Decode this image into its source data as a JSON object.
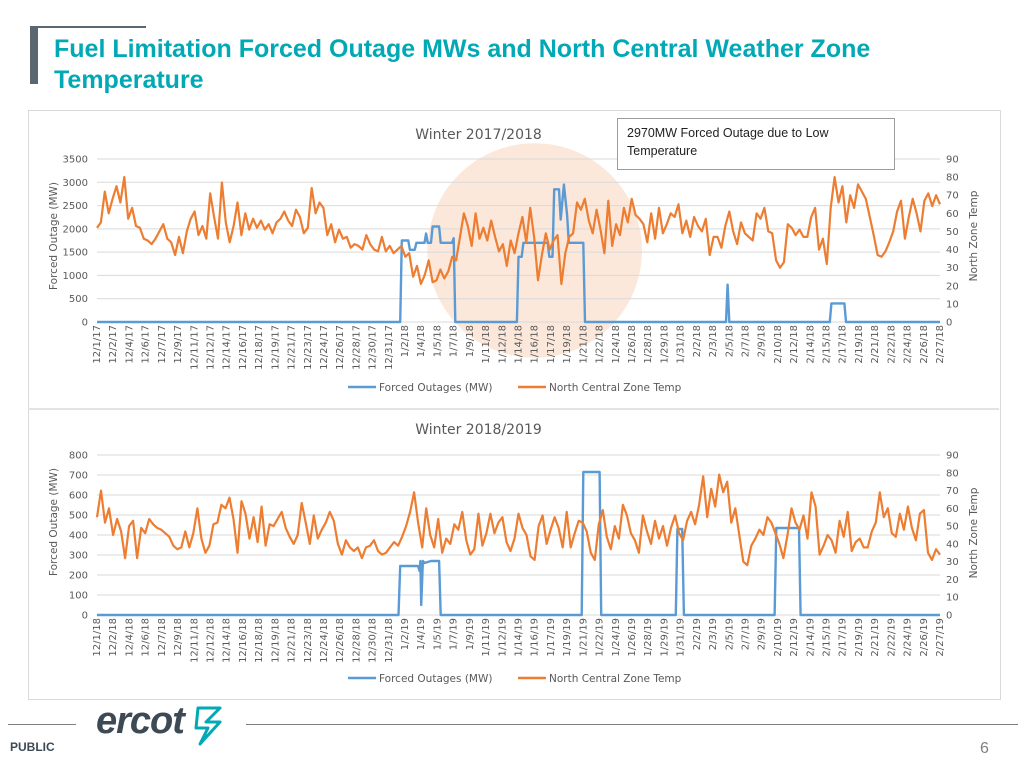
{
  "slide": {
    "title": "Fuel Limitation Forced Outage MWs and North Central Weather Zone Temperature",
    "footer_label": "PUBLIC",
    "page_number": "6",
    "logo_text": "ercot"
  },
  "colors": {
    "outage": "#5b9bd5",
    "temp": "#ed7d31",
    "title": "#00a9b5",
    "highlight": "#f8cbad"
  },
  "annotation": {
    "text": "2970MW Forced Outage due to Low Temperature"
  },
  "chart_data": [
    {
      "type": "line",
      "title": "Winter 2017/2018",
      "ylabel": "Forced Outage (MW)",
      "y2label": "North Zone Temp",
      "ylim": [
        0,
        3500
      ],
      "y2lim": [
        0,
        90
      ],
      "yticks": [
        0,
        500,
        1000,
        1500,
        2000,
        2500,
        3000,
        3500
      ],
      "y2ticks": [
        0,
        10,
        20,
        30,
        40,
        50,
        60,
        70,
        80,
        90
      ],
      "xticks": [
        "12/1/17",
        "12/2/17",
        "12/4/17",
        "12/6/17",
        "12/7/17",
        "12/9/17",
        "12/11/17",
        "12/12/17",
        "12/14/17",
        "12/16/17",
        "12/18/17",
        "12/19/17",
        "12/21/17",
        "12/23/17",
        "12/24/17",
        "12/26/17",
        "12/28/17",
        "12/30/17",
        "12/31/17",
        "1/2/18",
        "1/4/18",
        "1/5/18",
        "1/7/18",
        "1/9/18",
        "1/11/18",
        "1/12/18",
        "1/14/18",
        "1/16/18",
        "1/17/18",
        "1/19/18",
        "1/21/18",
        "1/22/18",
        "1/24/18",
        "1/26/18",
        "1/28/18",
        "1/29/18",
        "1/31/18",
        "2/2/18",
        "2/3/18",
        "2/5/18",
        "2/7/18",
        "2/9/18",
        "2/10/18",
        "2/12/18",
        "2/14/18",
        "2/15/18",
        "2/17/18",
        "2/19/18",
        "2/21/18",
        "2/22/18",
        "2/24/18",
        "2/26/18",
        "2/27/18"
      ],
      "legend": [
        "Forced Outages (MW)",
        "North Central Zone Temp"
      ],
      "highlight_x": [
        21,
        33
      ],
      "series": [
        {
          "name": "Forced Outages (MW)",
          "axis": "left",
          "points": [
            [
              0,
              0
            ],
            [
              18.7,
              0
            ],
            [
              18.8,
              1750
            ],
            [
              19.2,
              1750
            ],
            [
              19.3,
              1550
            ],
            [
              19.6,
              1550
            ],
            [
              19.7,
              1700
            ],
            [
              20.2,
              1700
            ],
            [
              20.3,
              1900
            ],
            [
              20.4,
              1700
            ],
            [
              20.6,
              1700
            ],
            [
              20.7,
              2050
            ],
            [
              21.1,
              2050
            ],
            [
              21.2,
              1700
            ],
            [
              21.9,
              1700
            ],
            [
              22.0,
              1800
            ],
            [
              22.1,
              0
            ],
            [
              25.9,
              0
            ],
            [
              26.0,
              1400
            ],
            [
              26.2,
              1400
            ],
            [
              26.3,
              1700
            ],
            [
              27.8,
              1700
            ],
            [
              27.9,
              1400
            ],
            [
              28.1,
              1400
            ],
            [
              28.2,
              2850
            ],
            [
              28.5,
              2850
            ],
            [
              28.6,
              2200
            ],
            [
              28.8,
              2950
            ],
            [
              29.0,
              2300
            ],
            [
              29.1,
              1700
            ],
            [
              30.0,
              1700
            ],
            [
              30.1,
              0
            ],
            [
              38.8,
              0
            ],
            [
              38.9,
              800
            ],
            [
              39.0,
              0
            ],
            [
              45.2,
              0
            ],
            [
              45.3,
              400
            ],
            [
              46.1,
              400
            ],
            [
              46.2,
              0
            ],
            [
              52,
              0
            ]
          ]
        },
        {
          "name": "North Central Zone Temp",
          "axis": "right",
          "values": [
            52,
            55,
            72,
            60,
            68,
            75,
            66,
            80,
            57,
            63,
            53,
            52,
            46,
            45,
            43,
            46,
            50,
            54,
            46,
            44,
            37,
            47,
            38,
            50,
            57,
            61,
            48,
            53,
            46,
            71,
            58,
            46,
            77,
            55,
            44,
            53,
            66,
            48,
            60,
            51,
            57,
            52,
            56,
            51,
            54,
            49,
            55,
            57,
            61,
            56,
            53,
            62,
            58,
            49,
            52,
            74,
            60,
            66,
            63,
            48,
            54,
            44,
            51,
            46,
            47,
            41,
            43,
            42,
            40,
            48,
            43,
            40,
            39,
            47,
            39,
            42,
            38,
            40,
            42,
            36,
            38,
            25,
            31,
            21,
            26,
            34,
            22,
            23,
            29,
            24,
            28,
            36,
            34,
            47,
            60,
            53,
            42,
            60,
            46,
            52,
            45,
            56,
            47,
            39,
            43,
            31,
            45,
            38,
            49,
            58,
            44,
            63,
            47,
            23,
            37,
            49,
            40,
            45,
            48,
            21,
            38,
            47,
            49,
            66,
            62,
            68,
            56,
            49,
            62,
            51,
            38,
            67,
            42,
            54,
            48,
            63,
            55,
            68,
            59,
            57,
            54,
            44,
            60,
            46,
            63,
            49,
            54,
            60,
            58,
            65,
            49,
            56,
            47,
            58,
            53,
            50,
            57,
            37,
            47,
            47,
            41,
            53,
            61,
            50,
            43,
            55,
            49,
            47,
            45,
            60,
            57,
            63,
            50,
            49,
            34,
            30,
            33,
            54,
            52,
            48,
            51,
            47,
            47,
            58,
            63,
            40,
            46,
            32,
            63,
            80,
            66,
            75,
            55,
            70,
            63,
            76,
            72,
            68,
            58,
            48,
            37,
            36,
            39,
            44,
            50,
            61,
            67,
            46,
            58,
            68,
            60,
            50,
            67,
            71,
            64,
            70,
            65
          ]
        }
      ]
    },
    {
      "type": "line",
      "title": "Winter 2018/2019",
      "ylabel": "Forced Outage (MW)",
      "y2label": "North Zone Temp",
      "ylim": [
        0,
        800
      ],
      "y2lim": [
        0,
        90
      ],
      "yticks": [
        0,
        100,
        200,
        300,
        400,
        500,
        600,
        700,
        800
      ],
      "y2ticks": [
        0,
        10,
        20,
        30,
        40,
        50,
        60,
        70,
        80,
        90
      ],
      "xticks": [
        "12/1/18",
        "12/2/18",
        "12/4/18",
        "12/6/18",
        "12/7/18",
        "12/9/18",
        "12/11/18",
        "12/12/18",
        "12/14/18",
        "12/16/18",
        "12/18/18",
        "12/19/18",
        "12/21/18",
        "12/23/18",
        "12/24/18",
        "12/26/18",
        "12/28/18",
        "12/30/18",
        "12/31/18",
        "1/2/19",
        "1/4/19",
        "1/5/19",
        "1/7/19",
        "1/9/19",
        "1/11/19",
        "1/12/19",
        "1/14/19",
        "1/16/19",
        "1/17/19",
        "1/19/19",
        "1/21/19",
        "1/22/19",
        "1/24/19",
        "1/26/19",
        "1/28/19",
        "1/29/19",
        "1/31/19",
        "2/2/19",
        "2/3/19",
        "2/5/19",
        "2/7/19",
        "2/9/19",
        "2/10/19",
        "2/12/19",
        "2/14/19",
        "2/15/19",
        "2/17/19",
        "2/19/19",
        "2/21/19",
        "2/22/19",
        "2/24/19",
        "2/26/19",
        "2/27/19"
      ],
      "legend": [
        "Forced Outages (MW)",
        "North Central Zone Temp"
      ],
      "series": [
        {
          "name": "Forced Outages (MW)",
          "axis": "left",
          "points": [
            [
              0,
              0
            ],
            [
              18.6,
              0
            ],
            [
              18.7,
              245
            ],
            [
              19.8,
              245
            ],
            [
              19.9,
              220
            ],
            [
              19.95,
              270
            ],
            [
              20.0,
              50
            ],
            [
              20.1,
              270
            ],
            [
              20.2,
              260
            ],
            [
              20.6,
              270
            ],
            [
              21.1,
              270
            ],
            [
              21.2,
              0
            ],
            [
              29.9,
              0
            ],
            [
              30.0,
              715
            ],
            [
              31.0,
              715
            ],
            [
              31.1,
              0
            ],
            [
              35.7,
              0
            ],
            [
              35.8,
              430
            ],
            [
              36.1,
              430
            ],
            [
              36.2,
              0
            ],
            [
              41.8,
              0
            ],
            [
              41.9,
              435
            ],
            [
              43.3,
              435
            ],
            [
              43.4,
              0
            ],
            [
              52,
              0
            ]
          ]
        },
        {
          "name": "North Central Zone Temp",
          "axis": "right",
          "values": [
            55,
            70,
            52,
            60,
            45,
            54,
            47,
            32,
            50,
            53,
            32,
            49,
            46,
            54,
            51,
            49,
            48,
            46,
            44,
            39,
            37,
            38,
            47,
            38,
            46,
            60,
            43,
            35,
            39,
            51,
            52,
            62,
            60,
            66,
            54,
            35,
            64,
            57,
            43,
            55,
            41,
            61,
            39,
            51,
            50,
            54,
            58,
            49,
            44,
            40,
            45,
            63,
            52,
            40,
            56,
            43,
            48,
            52,
            58,
            53,
            40,
            34,
            42,
            38,
            36,
            38,
            32,
            38,
            39,
            42,
            36,
            34,
            35,
            38,
            41,
            39,
            44,
            50,
            58,
            69,
            52,
            38,
            60,
            45,
            38,
            54,
            35,
            43,
            40,
            51,
            48,
            58,
            42,
            34,
            37,
            57,
            39,
            46,
            57,
            46,
            52,
            55,
            41,
            36,
            43,
            57,
            49,
            45,
            33,
            31,
            50,
            56,
            40,
            48,
            55,
            49,
            38,
            58,
            38,
            46,
            53,
            52,
            47,
            35,
            31,
            51,
            59,
            44,
            37,
            50,
            43,
            62,
            56,
            46,
            42,
            35,
            56,
            47,
            40,
            53,
            43,
            50,
            39,
            49,
            56,
            46,
            42,
            53,
            58,
            51,
            62,
            78,
            55,
            71,
            61,
            79,
            69,
            75,
            52,
            60,
            45,
            30,
            28,
            39,
            43,
            48,
            45,
            55,
            52,
            46,
            40,
            32,
            45,
            60,
            52,
            48,
            56,
            43,
            69,
            61,
            34,
            39,
            45,
            42,
            35,
            53,
            44,
            58,
            36,
            41,
            43,
            38,
            38,
            47,
            52,
            69,
            55,
            60,
            46,
            44,
            57,
            48,
            61,
            49,
            42,
            57,
            59,
            35,
            31,
            37,
            34
          ]
        }
      ]
    }
  ]
}
